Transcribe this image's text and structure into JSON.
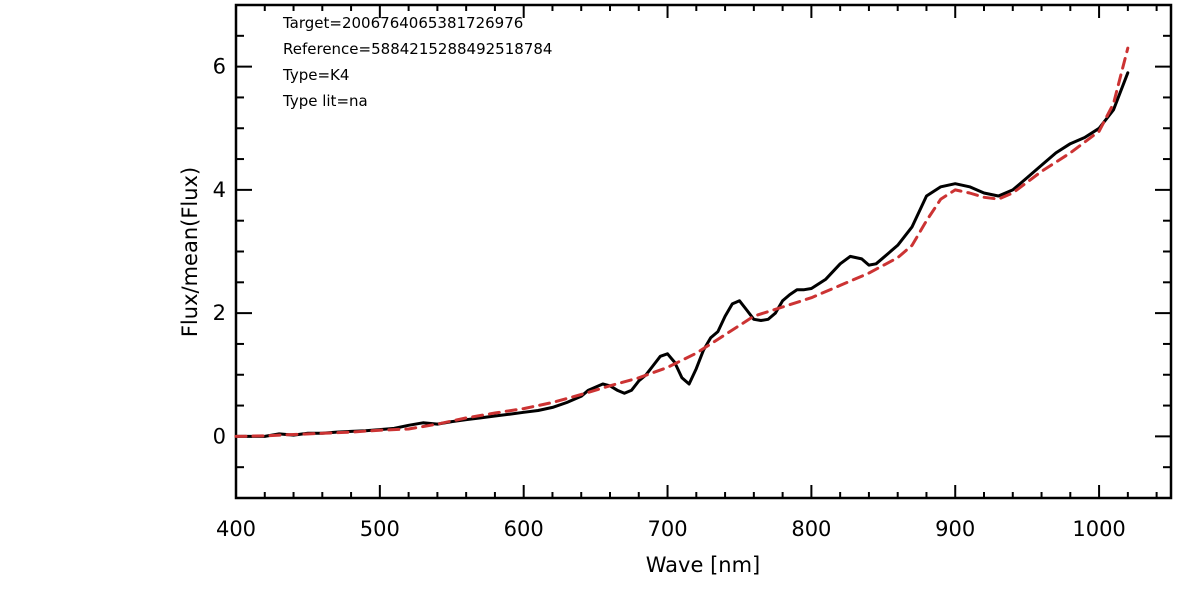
{
  "chart_data": {
    "type": "line",
    "title": "",
    "xlabel": "Wave [nm]",
    "ylabel": "Flux/mean(Flux)",
    "xlim": [
      400,
      1050
    ],
    "ylim": [
      -1,
      7
    ],
    "grid": false,
    "x_ticks": [
      "400",
      "500",
      "600",
      "700",
      "800",
      "900",
      "1000"
    ],
    "y_ticks": [
      "0",
      "2",
      "4",
      "6"
    ],
    "annotations": [
      "Target=2006764065381726976",
      "Reference=5884215288492518784",
      "Type=K4",
      "Type lit=na"
    ],
    "series": [
      {
        "color": "#000000",
        "style": "solid",
        "x": [
          400,
          410,
          420,
          430,
          440,
          450,
          460,
          470,
          480,
          490,
          500,
          510,
          520,
          530,
          540,
          550,
          560,
          570,
          580,
          590,
          600,
          610,
          620,
          630,
          640,
          645,
          650,
          655,
          660,
          665,
          670,
          675,
          680,
          685,
          690,
          695,
          700,
          705,
          710,
          715,
          720,
          725,
          730,
          735,
          740,
          745,
          750,
          755,
          760,
          765,
          770,
          775,
          780,
          785,
          790,
          795,
          800,
          810,
          820,
          827,
          835,
          840,
          845,
          850,
          860,
          870,
          880,
          890,
          900,
          910,
          920,
          930,
          940,
          950,
          960,
          970,
          980,
          990,
          1000,
          1010,
          1020
        ],
        "y": [
          0.0,
          0.0,
          0.0,
          0.04,
          0.02,
          0.05,
          0.05,
          0.07,
          0.08,
          0.09,
          0.11,
          0.13,
          0.18,
          0.22,
          0.2,
          0.24,
          0.27,
          0.3,
          0.33,
          0.36,
          0.39,
          0.42,
          0.47,
          0.55,
          0.65,
          0.75,
          0.8,
          0.85,
          0.82,
          0.75,
          0.7,
          0.75,
          0.9,
          1.0,
          1.15,
          1.3,
          1.34,
          1.2,
          0.95,
          0.85,
          1.1,
          1.4,
          1.6,
          1.7,
          1.95,
          2.15,
          2.2,
          2.05,
          1.9,
          1.88,
          1.9,
          2.0,
          2.2,
          2.3,
          2.38,
          2.38,
          2.4,
          2.55,
          2.8,
          2.92,
          2.88,
          2.78,
          2.8,
          2.9,
          3.1,
          3.4,
          3.9,
          4.05,
          4.1,
          4.05,
          3.95,
          3.9,
          4.0,
          4.2,
          4.4,
          4.6,
          4.75,
          4.85,
          5.0,
          5.3,
          5.9
        ]
      },
      {
        "color": "#cc3333",
        "style": "dashed",
        "x": [
          400,
          420,
          440,
          460,
          480,
          500,
          520,
          540,
          560,
          580,
          600,
          620,
          640,
          660,
          680,
          700,
          720,
          740,
          760,
          780,
          800,
          820,
          840,
          860,
          870,
          880,
          890,
          900,
          910,
          920,
          930,
          940,
          960,
          980,
          1000,
          1010,
          1020
        ],
        "y": [
          0.0,
          0.01,
          0.03,
          0.05,
          0.07,
          0.1,
          0.12,
          0.2,
          0.3,
          0.38,
          0.45,
          0.55,
          0.68,
          0.82,
          0.95,
          1.12,
          1.35,
          1.65,
          1.95,
          2.1,
          2.25,
          2.45,
          2.65,
          2.9,
          3.1,
          3.5,
          3.85,
          4.0,
          3.95,
          3.88,
          3.85,
          3.95,
          4.3,
          4.6,
          4.95,
          5.4,
          6.3
        ]
      }
    ]
  }
}
